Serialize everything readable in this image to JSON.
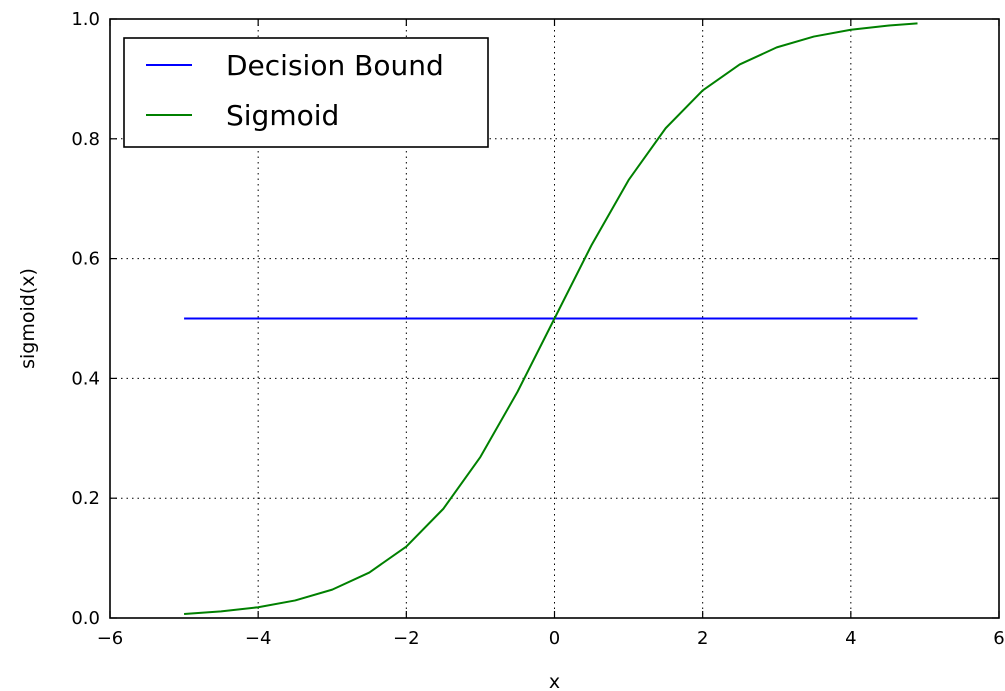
{
  "chart_data": {
    "type": "line",
    "title": "",
    "xlabel": "x",
    "ylabel": "sigmoid(x)",
    "xlim": [
      -6,
      6
    ],
    "ylim": [
      0.0,
      1.0
    ],
    "xticks": [
      "−6",
      "−4",
      "−2",
      "0",
      "2",
      "4",
      "6"
    ],
    "yticks": [
      "0.0",
      "0.2",
      "0.4",
      "0.6",
      "0.8",
      "1.0"
    ],
    "grid": true,
    "grid_style": "dotted",
    "legend_position": "top-left",
    "series": [
      {
        "name": "Decision Bound",
        "color": "#0000ff",
        "x": [
          -5.0,
          4.9
        ],
        "y": [
          0.5,
          0.5
        ]
      },
      {
        "name": "Sigmoid",
        "color": "#008000",
        "x": [
          -5.0,
          -4.5,
          -4.0,
          -3.5,
          -3.0,
          -2.5,
          -2.0,
          -1.5,
          -1.0,
          -0.5,
          0.0,
          0.5,
          1.0,
          1.5,
          2.0,
          2.5,
          3.0,
          3.5,
          4.0,
          4.5,
          4.9
        ],
        "y": [
          0.0067,
          0.011,
          0.018,
          0.0293,
          0.0474,
          0.0759,
          0.1192,
          0.1824,
          0.2689,
          0.3775,
          0.5,
          0.6225,
          0.7311,
          0.8176,
          0.8808,
          0.9241,
          0.9526,
          0.9707,
          0.982,
          0.989,
          0.9926
        ]
      }
    ]
  }
}
